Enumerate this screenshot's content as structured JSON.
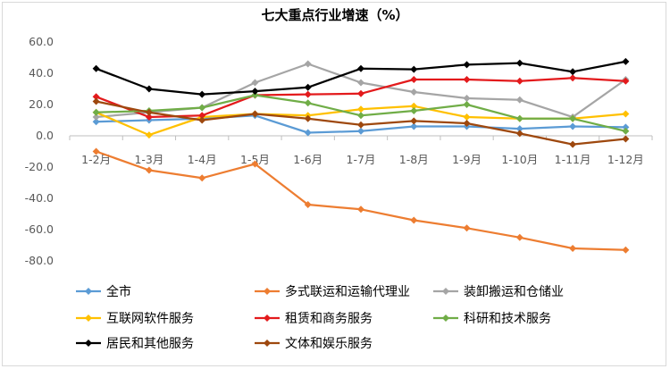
{
  "chart_data": {
    "type": "line",
    "title": "七大重点行业增速（%）",
    "xlabel": "",
    "ylabel": "",
    "categories": [
      "1-2月",
      "1-3月",
      "1-4月",
      "1-5月",
      "1-6月",
      "1-7月",
      "1-8月",
      "1-9月",
      "1-10月",
      "1-11月",
      "1-12月"
    ],
    "ylim": [
      -80,
      60
    ],
    "yticks": [
      "60.0",
      "40.0",
      "20.0",
      "0.0",
      "-20.0",
      "-40.0",
      "-60.0",
      "-80.0"
    ],
    "grid": false,
    "legend_position": "bottom",
    "series": [
      {
        "name": "全市",
        "color": "#5b9bd5",
        "values": [
          9,
          10,
          11,
          13,
          2,
          3,
          6,
          6,
          4.5,
          6,
          5.5
        ]
      },
      {
        "name": "多式联运和运输代理业",
        "color": "#ed7d31",
        "values": [
          -10,
          -22,
          -27,
          -18,
          -44,
          -47,
          -54,
          -59,
          -65,
          -72,
          -73
        ]
      },
      {
        "name": "装卸搬运和仓储业",
        "color": "#a5a5a5",
        "values": [
          12,
          15,
          18,
          34,
          46,
          34,
          28,
          24,
          23,
          12,
          36
        ]
      },
      {
        "name": "互联网软件服务",
        "color": "#ffc000",
        "values": [
          15,
          0.5,
          12,
          14,
          13,
          17,
          19,
          12,
          11,
          11,
          14
        ]
      },
      {
        "name": "租赁和商务服务",
        "color": "#e31a1c",
        "values": [
          25,
          12,
          13,
          26,
          26.5,
          27,
          36,
          36,
          35,
          37,
          35
        ]
      },
      {
        "name": "科研和技术服务",
        "color": "#70ad47",
        "values": [
          15,
          16,
          18,
          26,
          21,
          13,
          16,
          20,
          11,
          11,
          3
        ]
      },
      {
        "name": "居民和其他服务",
        "color": "#000000",
        "values": [
          43,
          30,
          26.5,
          28.5,
          31,
          43,
          42.5,
          45.5,
          46.5,
          41,
          47.5
        ]
      },
      {
        "name": "文体和娱乐服务",
        "color": "#9e480e",
        "values": [
          22,
          15,
          10,
          14,
          11,
          7,
          9.5,
          8,
          1.5,
          -5.5,
          -2
        ]
      }
    ]
  }
}
